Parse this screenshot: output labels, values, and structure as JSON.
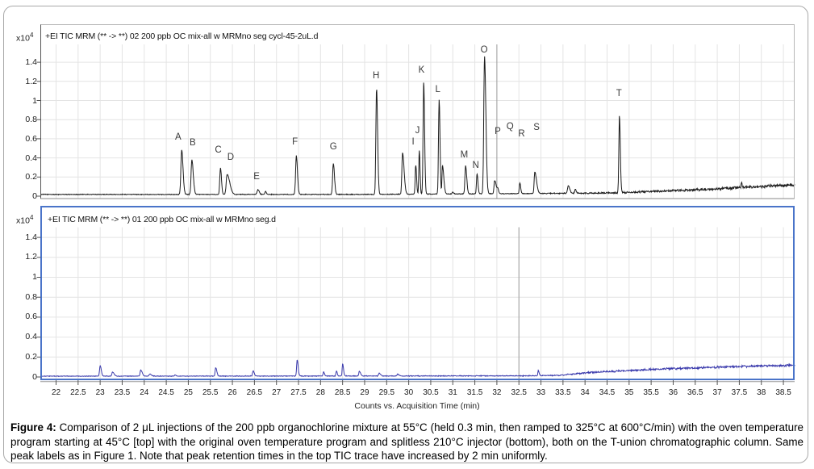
{
  "figure": {
    "caption_label": "Figure 4:",
    "caption_text": "Comparison of 2 μL injections of the 200 ppb organochlorine mixture at 55°C (held 0.3 min, then ramped to 325°C at 600°C/min) with the oven temperature program starting at 45°C [top] with the original oven temperature program and splitless 210°C injector (bottom), both on the T-union chromatographic column. Same peak labels as in Figure 1. Note that peak retention times in the top TIC trace have increased by 2 min uniformly."
  },
  "chart_data": {
    "type": "line",
    "x_axis_title": "Counts vs. Acquisition Time (min)",
    "x_range": [
      21.65,
      38.76
    ],
    "x_ticks": [
      22,
      22.5,
      23,
      23.5,
      24,
      24.5,
      25,
      25.5,
      26,
      26.5,
      27,
      27.5,
      28,
      28.5,
      29,
      29.5,
      30,
      30.5,
      31,
      31.5,
      32,
      32.5,
      33,
      33.5,
      34,
      34.5,
      35,
      35.5,
      36,
      36.5,
      37,
      37.5,
      38,
      38.5
    ],
    "y_ticks": [
      "0",
      "0.2",
      "0.4",
      "0.6",
      "0.8",
      "1",
      "1.2",
      "1.4"
    ],
    "y_scale_label": "x10",
    "y_scale_exponent": "4",
    "grid_color": "#e4e4e4",
    "panels": [
      {
        "name": "top",
        "title": "+EI TIC MRM (** -> **) 02 200 ppb OC mix-all w MRMno seg cycl-45-2uL.d",
        "trace_color": "#1c1c1c",
        "border_color": "#b8b8b8",
        "marker_time": 32.0,
        "seed": 1234,
        "baseline": [
          [
            21.65,
            0.018
          ],
          [
            29,
            0.018
          ],
          [
            33,
            0.028
          ],
          [
            34.6,
            0.033
          ],
          [
            35.5,
            0.05
          ],
          [
            36.5,
            0.065
          ],
          [
            37.5,
            0.09
          ],
          [
            38.2,
            0.105
          ],
          [
            38.8,
            0.12
          ]
        ],
        "noise": [
          [
            21.65,
            0.0045
          ],
          [
            33,
            0.005
          ],
          [
            34,
            0.008
          ],
          [
            35,
            0.012
          ],
          [
            36,
            0.015
          ],
          [
            38.8,
            0.018
          ]
        ],
        "peaks": [
          {
            "t": 24.85,
            "h": 0.464,
            "sl": 0.018,
            "sr": 0.03
          },
          {
            "t": 25.08,
            "h": 0.363,
            "sl": 0.017,
            "sr": 0.032
          },
          {
            "t": 25.73,
            "h": 0.278,
            "sl": 0.016,
            "sr": 0.022
          },
          {
            "t": 25.88,
            "h": 0.21,
            "sl": 0.02,
            "sr": 0.06
          },
          {
            "t": 26.58,
            "h": 0.05,
            "sl": 0.02,
            "sr": 0.028
          },
          {
            "t": 26.75,
            "h": 0.03,
            "sl": 0.012,
            "sr": 0.018
          },
          {
            "t": 27.45,
            "h": 0.405,
            "sl": 0.016,
            "sr": 0.026
          },
          {
            "t": 28.29,
            "h": 0.321,
            "sl": 0.016,
            "sr": 0.026
          },
          {
            "t": 29.27,
            "h": 1.108,
            "sl": 0.015,
            "sr": 0.024
          },
          {
            "t": 29.86,
            "h": 0.433,
            "sl": 0.015,
            "sr": 0.035
          },
          {
            "t": 30.16,
            "h": 0.306,
            "sl": 0.013,
            "sr": 0.018
          },
          {
            "t": 30.24,
            "h": 0.462,
            "sl": 0.011,
            "sr": 0.016
          },
          {
            "t": 30.34,
            "h": 1.179,
            "sl": 0.014,
            "sr": 0.02
          },
          {
            "t": 30.69,
            "h": 0.982,
            "sl": 0.014,
            "sr": 0.02
          },
          {
            "t": 30.765,
            "h": 0.3,
            "sl": 0.01,
            "sr": 0.03
          },
          {
            "t": 31.0,
            "h": 0.02,
            "sl": 0.015,
            "sr": 0.02
          },
          {
            "t": 31.29,
            "h": 0.293,
            "sl": 0.015,
            "sr": 0.026
          },
          {
            "t": 31.55,
            "h": 0.208,
            "sl": 0.013,
            "sr": 0.02
          },
          {
            "t": 31.72,
            "h": 1.437,
            "sl": 0.017,
            "sr": 0.03
          },
          {
            "t": 31.95,
            "h": 0.138,
            "sl": 0.015,
            "sr": 0.035
          },
          {
            "t": 32.02,
            "h": 0.045,
            "sl": 0.013,
            "sr": 0.02
          },
          {
            "t": 32.52,
            "h": 0.11,
            "sl": 0.012,
            "sr": 0.02
          },
          {
            "t": 32.86,
            "h": 0.222,
            "sl": 0.014,
            "sr": 0.04
          },
          {
            "t": 33.62,
            "h": 0.08,
            "sl": 0.018,
            "sr": 0.032
          },
          {
            "t": 33.78,
            "h": 0.04,
            "sl": 0.013,
            "sr": 0.02
          },
          {
            "t": 34.78,
            "h": 0.804,
            "sl": 0.013,
            "sr": 0.02
          },
          {
            "t": 37.55,
            "h": 0.05,
            "sl": 0.01,
            "sr": 0.012
          }
        ],
        "peak_labels": [
          {
            "text": "A",
            "t": 24.77,
            "v": 0.611
          },
          {
            "text": "B",
            "t": 25.1,
            "v": 0.546
          },
          {
            "text": "C",
            "t": 25.68,
            "v": 0.47
          },
          {
            "text": "D",
            "t": 25.96,
            "v": 0.399
          },
          {
            "text": "E",
            "t": 26.55,
            "v": 0.194
          },
          {
            "text": "F",
            "t": 27.42,
            "v": 0.56
          },
          {
            "text": "G",
            "t": 28.29,
            "v": 0.504
          },
          {
            "text": "H",
            "t": 29.26,
            "v": 1.249
          },
          {
            "text": "I",
            "t": 30.1,
            "v": 0.56
          },
          {
            "text": "J",
            "t": 30.2,
            "v": 0.673
          },
          {
            "text": "K",
            "t": 30.29,
            "v": 1.306
          },
          {
            "text": "L",
            "t": 30.66,
            "v": 1.108
          },
          {
            "text": "M",
            "t": 31.26,
            "v": 0.419
          },
          {
            "text": "N",
            "t": 31.52,
            "v": 0.315
          },
          {
            "text": "O",
            "t": 31.71,
            "v": 1.522
          },
          {
            "text": "P",
            "t": 32.02,
            "v": 0.664
          },
          {
            "text": "Q",
            "t": 32.3,
            "v": 0.72
          },
          {
            "text": "R",
            "t": 32.56,
            "v": 0.644
          },
          {
            "text": "S",
            "t": 32.9,
            "v": 0.706
          },
          {
            "text": "T",
            "t": 34.77,
            "v": 1.061
          }
        ]
      },
      {
        "name": "bottom",
        "title": "+EI TIC MRM (** -> **) 01 200 ppb OC mix-all w MRMno seg.d",
        "trace_color": "#3a3aac",
        "border_color": "#4a74c9",
        "marker_time": 32.5,
        "seed": 99,
        "baseline": [
          [
            21.65,
            0.008
          ],
          [
            29.5,
            0.01
          ],
          [
            32.8,
            0.012
          ],
          [
            33.4,
            0.016
          ],
          [
            34.1,
            0.045
          ],
          [
            35,
            0.065
          ],
          [
            35.8,
            0.082
          ],
          [
            36.6,
            0.092
          ],
          [
            37.2,
            0.102
          ],
          [
            38.8,
            0.118
          ]
        ],
        "noise": [
          [
            21.65,
            0.0035
          ],
          [
            33,
            0.005
          ],
          [
            33.8,
            0.008
          ],
          [
            34.5,
            0.01
          ],
          [
            35,
            0.011
          ],
          [
            38.8,
            0.013
          ]
        ],
        "peaks": [
          {
            "t": 23.0,
            "h": 0.105,
            "sl": 0.014,
            "sr": 0.025
          },
          {
            "t": 23.28,
            "h": 0.042,
            "sl": 0.013,
            "sr": 0.035
          },
          {
            "t": 23.92,
            "h": 0.062,
            "sl": 0.013,
            "sr": 0.032
          },
          {
            "t": 24.13,
            "h": 0.02,
            "sl": 0.018,
            "sr": 0.032
          },
          {
            "t": 24.7,
            "h": 0.01,
            "sl": 0.015,
            "sr": 0.022
          },
          {
            "t": 25.62,
            "h": 0.085,
            "sl": 0.012,
            "sr": 0.025
          },
          {
            "t": 26.47,
            "h": 0.052,
            "sl": 0.013,
            "sr": 0.025
          },
          {
            "t": 27.47,
            "h": 0.162,
            "sl": 0.013,
            "sr": 0.022
          },
          {
            "t": 28.07,
            "h": 0.04,
            "sl": 0.013,
            "sr": 0.02
          },
          {
            "t": 28.36,
            "h": 0.052,
            "sl": 0.011,
            "sr": 0.018
          },
          {
            "t": 28.5,
            "h": 0.122,
            "sl": 0.01,
            "sr": 0.02
          },
          {
            "t": 28.88,
            "h": 0.048,
            "sl": 0.013,
            "sr": 0.028
          },
          {
            "t": 29.33,
            "h": 0.028,
            "sl": 0.013,
            "sr": 0.028
          },
          {
            "t": 29.75,
            "h": 0.018,
            "sl": 0.015,
            "sr": 0.03
          },
          {
            "t": 32.94,
            "h": 0.055,
            "sl": 0.009,
            "sr": 0.018
          }
        ],
        "peak_labels": []
      }
    ]
  }
}
